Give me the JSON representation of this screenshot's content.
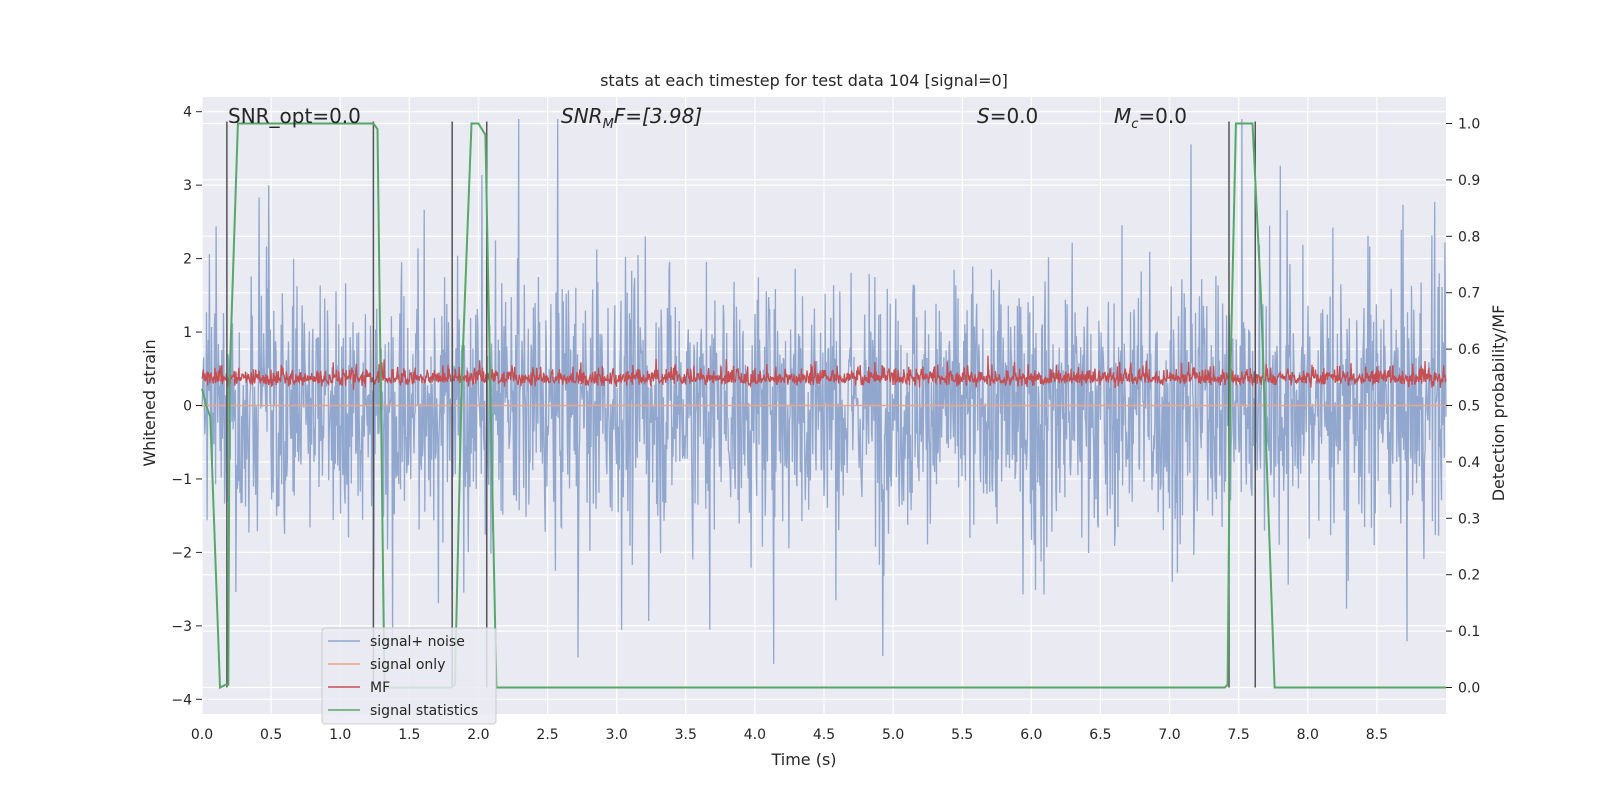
{
  "chart_data": {
    "type": "line",
    "title": "stats at each timestep for test data 104 [signal=0]",
    "xlabel": "Time (s)",
    "ylabel": "Whitened strain",
    "y2label": "Detection probability/MF",
    "xlim": [
      0.0,
      9.0
    ],
    "ylim": [
      -4.2,
      4.2
    ],
    "y2lim": [
      -0.047,
      1.047
    ],
    "xticks": [
      0.0,
      0.5,
      1.0,
      1.5,
      2.0,
      2.5,
      3.0,
      3.5,
      4.0,
      4.5,
      5.0,
      5.5,
      6.0,
      6.5,
      7.0,
      7.5,
      8.0,
      8.5
    ],
    "xtick_labels": [
      "0.0",
      "0.5",
      "1.0",
      "1.5",
      "2.0",
      "2.5",
      "3.0",
      "3.5",
      "4.0",
      "4.5",
      "5.0",
      "5.5",
      "6.0",
      "6.5",
      "7.0",
      "7.5",
      "8.0",
      "8.5"
    ],
    "yticks": [
      -4,
      -3,
      -2,
      -1,
      0,
      1,
      2,
      3,
      4
    ],
    "ytick_labels": [
      "−4",
      "−3",
      "−2",
      "−1",
      "0",
      "1",
      "2",
      "3",
      "4"
    ],
    "y2ticks": [
      0.0,
      0.1,
      0.2,
      0.3,
      0.4,
      0.5,
      0.6,
      0.7,
      0.8,
      0.9,
      1.0
    ],
    "y2tick_labels": [
      "0.0",
      "0.1",
      "0.2",
      "0.3",
      "0.4",
      "0.5",
      "0.6",
      "0.7",
      "0.8",
      "0.9",
      "1.0"
    ],
    "grid": true,
    "legend_position": "lower-left",
    "annotations": {
      "snr_opt": "SNR_opt=0.0",
      "snr_mf_main": "SNR",
      "snr_mf_sub": "M",
      "snr_mf_rest": "F=[3.98]",
      "s_main": "S",
      "s_rest": "=0.0",
      "mc_main": "M",
      "mc_sub": "c",
      "mc_rest": "=0.0"
    },
    "series": [
      {
        "name": "signal+ noise",
        "color": "#8da3cb",
        "axis": "left",
        "style": "noise",
        "duration": 9.0,
        "approx_std": 1.0,
        "approx_range": [
          -4.0,
          3.9
        ]
      },
      {
        "name": "signal only",
        "color": "#e8a68a",
        "axis": "left",
        "style": "flat",
        "x": [
          0.0,
          9.0
        ],
        "y": [
          0.0,
          0.0
        ]
      },
      {
        "name": "MF",
        "color": "#c44e52",
        "axis": "right",
        "style": "noise",
        "approx_mean": 0.54,
        "approx_range": [
          0.51,
          0.6
        ]
      },
      {
        "name": "signal statistics",
        "color": "#55a868",
        "axis": "right",
        "x": [
          0.0,
          0.03,
          0.06,
          0.13,
          0.17,
          0.19,
          0.2,
          0.26,
          0.5,
          1.0,
          1.24,
          1.27,
          1.32,
          1.4,
          1.8,
          1.83,
          1.88,
          1.95,
          2.0,
          2.05,
          2.08,
          2.13,
          2.3,
          3.0,
          4.0,
          5.0,
          6.0,
          7.0,
          7.4,
          7.42,
          7.44,
          7.48,
          7.6,
          7.66,
          7.76,
          8.0,
          9.0
        ],
        "y": [
          0.53,
          0.5,
          0.48,
          0.0,
          0.005,
          0.005,
          0.55,
          1.0,
          1.0,
          1.0,
          1.0,
          0.99,
          0.0,
          0.0,
          0.0,
          0.005,
          0.55,
          1.0,
          1.0,
          0.98,
          0.6,
          0.0,
          0.0,
          0.0,
          0.0,
          0.0,
          0.0,
          0.0,
          0.0,
          0.005,
          0.55,
          1.0,
          1.0,
          0.7,
          0.0,
          0.0,
          0.0
        ]
      }
    ],
    "vlines": {
      "color": "#555555",
      "x": [
        0.18,
        1.24,
        1.81,
        2.06,
        7.43,
        7.62
      ]
    }
  }
}
